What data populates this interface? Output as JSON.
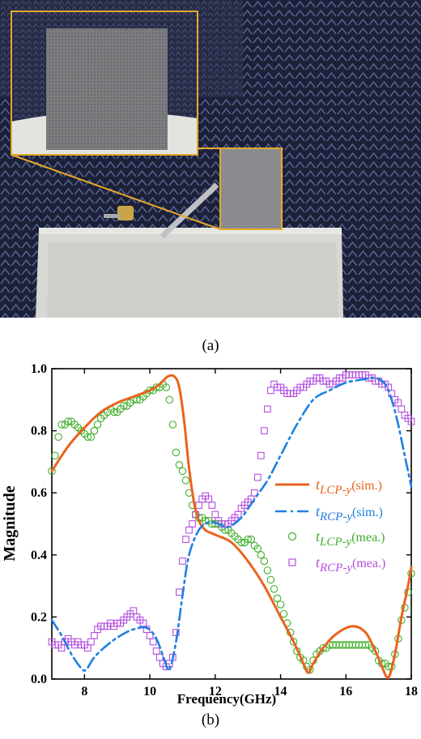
{
  "captions": {
    "a": "(a)",
    "b": "(b)"
  },
  "colors": {
    "lcp_sim": "#e8641e",
    "rcp_sim": "#1f7fe0",
    "lcp_mea": "#3fae2a",
    "rcp_mea": "#b44ee0",
    "photo_frame": "#e6a92a",
    "chamber_blue": "#232845"
  },
  "chart_data": {
    "type": "line",
    "xlabel": "Frequency(GHz)",
    "ylabel": "Magnitude",
    "xlim": [
      7,
      18
    ],
    "ylim": [
      0,
      1
    ],
    "xticks": [
      "8",
      "10",
      "12",
      "14",
      "16",
      "18"
    ],
    "yticks": [
      "0.0",
      "0.2",
      "0.4",
      "0.6",
      "0.8",
      "1.0"
    ],
    "grid": false,
    "legend_position": "right",
    "series": [
      {
        "name": "t_{LCP-y}(sim.)",
        "label_main": "t",
        "label_sub": "LCP-y",
        "label_tail": "(sim.)",
        "style": "solid",
        "x": [
          7.0,
          7.5,
          8.0,
          8.5,
          9.0,
          9.5,
          10.0,
          10.3,
          10.55,
          10.75,
          10.9,
          11.05,
          11.2,
          11.35,
          11.5,
          11.7,
          12.0,
          12.5,
          13.0,
          13.5,
          14.0,
          14.4,
          14.7,
          14.85,
          15.0,
          15.3,
          15.7,
          16.2,
          16.6,
          16.9,
          17.1,
          17.3,
          17.5,
          17.7,
          17.9,
          18.0
        ],
        "y": [
          0.67,
          0.75,
          0.81,
          0.86,
          0.89,
          0.91,
          0.93,
          0.95,
          0.975,
          0.975,
          0.94,
          0.83,
          0.68,
          0.57,
          0.51,
          0.48,
          0.465,
          0.44,
          0.38,
          0.3,
          0.2,
          0.12,
          0.05,
          0.02,
          0.05,
          0.1,
          0.145,
          0.17,
          0.15,
          0.09,
          0.04,
          0.005,
          0.08,
          0.2,
          0.3,
          0.36
        ]
      },
      {
        "name": "t_{RCP-y}(sim.)",
        "label_main": "t",
        "label_sub": "RCP-y",
        "label_tail": "(sim.)",
        "style": "dashdot",
        "x": [
          7.0,
          7.3,
          7.6,
          7.9,
          8.05,
          8.3,
          8.7,
          9.1,
          9.5,
          9.9,
          10.2,
          10.45,
          10.6,
          10.8,
          11.0,
          11.2,
          11.5,
          11.8,
          12.1,
          12.4,
          12.8,
          13.2,
          13.6,
          14.0,
          14.5,
          15.0,
          15.5,
          16.0,
          16.5,
          16.9,
          17.2,
          17.4,
          17.6,
          17.8,
          18.0
        ],
        "y": [
          0.19,
          0.14,
          0.08,
          0.035,
          0.03,
          0.07,
          0.11,
          0.14,
          0.16,
          0.165,
          0.13,
          0.06,
          0.03,
          0.12,
          0.27,
          0.4,
          0.48,
          0.505,
          0.5,
          0.49,
          0.52,
          0.58,
          0.64,
          0.72,
          0.82,
          0.9,
          0.93,
          0.955,
          0.965,
          0.97,
          0.95,
          0.9,
          0.82,
          0.72,
          0.62
        ]
      },
      {
        "name": "t_{LCP-y}(mea.)",
        "label_main": "t",
        "label_sub": "LCP-y",
        "label_tail": "(mea.)",
        "style": "circle",
        "x": [
          7.0,
          7.1,
          7.2,
          7.3,
          7.4,
          7.5,
          7.6,
          7.7,
          7.8,
          7.9,
          8.0,
          8.1,
          8.2,
          8.3,
          8.4,
          8.5,
          8.6,
          8.7,
          8.8,
          8.9,
          9.0,
          9.1,
          9.2,
          9.3,
          9.4,
          9.5,
          9.6,
          9.7,
          9.8,
          9.9,
          10.0,
          10.1,
          10.2,
          10.3,
          10.4,
          10.5,
          10.6,
          10.7,
          10.8,
          10.9,
          11.0,
          11.1,
          11.2,
          11.3,
          11.4,
          11.5,
          11.6,
          11.7,
          11.8,
          11.9,
          12.0,
          12.1,
          12.2,
          12.3,
          12.4,
          12.5,
          12.6,
          12.7,
          12.8,
          12.9,
          13.0,
          13.1,
          13.2,
          13.3,
          13.4,
          13.5,
          13.6,
          13.7,
          13.8,
          13.9,
          14.0,
          14.1,
          14.2,
          14.3,
          14.4,
          14.5,
          14.6,
          14.7,
          14.8,
          14.9,
          15.0,
          15.1,
          15.2,
          15.3,
          15.4,
          15.5,
          15.6,
          15.7,
          15.8,
          15.9,
          16.0,
          16.1,
          16.2,
          16.3,
          16.4,
          16.5,
          16.6,
          16.7,
          16.8,
          16.9,
          17.0,
          17.1,
          17.2,
          17.3,
          17.4,
          17.5,
          17.6,
          17.7,
          17.8,
          17.9,
          18.0
        ],
        "y": [
          0.67,
          0.72,
          0.78,
          0.82,
          0.82,
          0.83,
          0.83,
          0.82,
          0.81,
          0.8,
          0.79,
          0.78,
          0.78,
          0.8,
          0.82,
          0.84,
          0.85,
          0.86,
          0.87,
          0.86,
          0.86,
          0.87,
          0.88,
          0.88,
          0.89,
          0.9,
          0.9,
          0.9,
          0.91,
          0.92,
          0.93,
          0.93,
          0.94,
          0.94,
          0.95,
          0.94,
          0.9,
          0.82,
          0.73,
          0.69,
          0.67,
          0.64,
          0.6,
          0.56,
          0.53,
          0.52,
          0.52,
          0.51,
          0.51,
          0.5,
          0.5,
          0.5,
          0.49,
          0.48,
          0.48,
          0.47,
          0.46,
          0.45,
          0.44,
          0.44,
          0.45,
          0.45,
          0.43,
          0.42,
          0.4,
          0.38,
          0.35,
          0.32,
          0.29,
          0.26,
          0.24,
          0.21,
          0.18,
          0.15,
          0.12,
          0.09,
          0.07,
          0.06,
          0.04,
          0.03,
          0.06,
          0.08,
          0.09,
          0.1,
          0.1,
          0.11,
          0.11,
          0.11,
          0.11,
          0.11,
          0.11,
          0.11,
          0.11,
          0.11,
          0.11,
          0.11,
          0.11,
          0.11,
          0.1,
          0.09,
          0.06,
          0.05,
          0.05,
          0.04,
          0.04,
          0.08,
          0.13,
          0.19,
          0.23,
          0.28,
          0.34
        ]
      },
      {
        "name": "t_{RCP-y}(mea.)",
        "label_main": "t",
        "label_sub": "RCP-y",
        "label_tail": "(mea.)",
        "style": "square",
        "x": [
          7.0,
          7.1,
          7.2,
          7.3,
          7.4,
          7.5,
          7.6,
          7.7,
          7.8,
          7.9,
          8.0,
          8.1,
          8.2,
          8.3,
          8.4,
          8.5,
          8.6,
          8.7,
          8.8,
          8.9,
          9.0,
          9.1,
          9.2,
          9.3,
          9.4,
          9.5,
          9.6,
          9.7,
          9.8,
          9.9,
          10.0,
          10.1,
          10.2,
          10.3,
          10.4,
          10.5,
          10.6,
          10.7,
          10.8,
          10.9,
          11.0,
          11.1,
          11.2,
          11.3,
          11.4,
          11.5,
          11.6,
          11.7,
          11.8,
          11.9,
          12.0,
          12.1,
          12.2,
          12.3,
          12.4,
          12.5,
          12.6,
          12.7,
          12.8,
          12.9,
          13.0,
          13.1,
          13.2,
          13.3,
          13.4,
          13.5,
          13.6,
          13.7,
          13.8,
          13.9,
          14.0,
          14.1,
          14.2,
          14.3,
          14.4,
          14.5,
          14.6,
          14.7,
          14.8,
          14.9,
          15.0,
          15.1,
          15.2,
          15.3,
          15.4,
          15.5,
          15.6,
          15.7,
          15.8,
          15.9,
          16.0,
          16.1,
          16.2,
          16.3,
          16.4,
          16.5,
          16.6,
          16.7,
          16.8,
          16.9,
          17.0,
          17.1,
          17.2,
          17.3,
          17.4,
          17.5,
          17.6,
          17.7,
          17.8,
          17.9,
          18.0
        ],
        "y": [
          0.12,
          0.11,
          0.11,
          0.1,
          0.12,
          0.13,
          0.12,
          0.11,
          0.12,
          0.11,
          0.11,
          0.1,
          0.12,
          0.14,
          0.16,
          0.17,
          0.17,
          0.17,
          0.18,
          0.17,
          0.18,
          0.18,
          0.19,
          0.2,
          0.21,
          0.22,
          0.2,
          0.19,
          0.18,
          0.16,
          0.14,
          0.12,
          0.09,
          0.07,
          0.05,
          0.04,
          0.05,
          0.07,
          0.15,
          0.28,
          0.38,
          0.45,
          0.48,
          0.5,
          0.53,
          0.56,
          0.58,
          0.59,
          0.58,
          0.56,
          0.53,
          0.51,
          0.5,
          0.5,
          0.5,
          0.51,
          0.52,
          0.53,
          0.55,
          0.56,
          0.57,
          0.58,
          0.6,
          0.65,
          0.72,
          0.8,
          0.87,
          0.93,
          0.95,
          0.94,
          0.94,
          0.93,
          0.92,
          0.92,
          0.92,
          0.93,
          0.94,
          0.94,
          0.95,
          0.96,
          0.96,
          0.97,
          0.97,
          0.96,
          0.96,
          0.95,
          0.95,
          0.96,
          0.97,
          0.97,
          0.98,
          0.98,
          0.98,
          0.98,
          0.98,
          0.98,
          0.98,
          0.97,
          0.97,
          0.96,
          0.96,
          0.95,
          0.95,
          0.94,
          0.92,
          0.9,
          0.89,
          0.87,
          0.85,
          0.84,
          0.83
        ]
      }
    ]
  }
}
